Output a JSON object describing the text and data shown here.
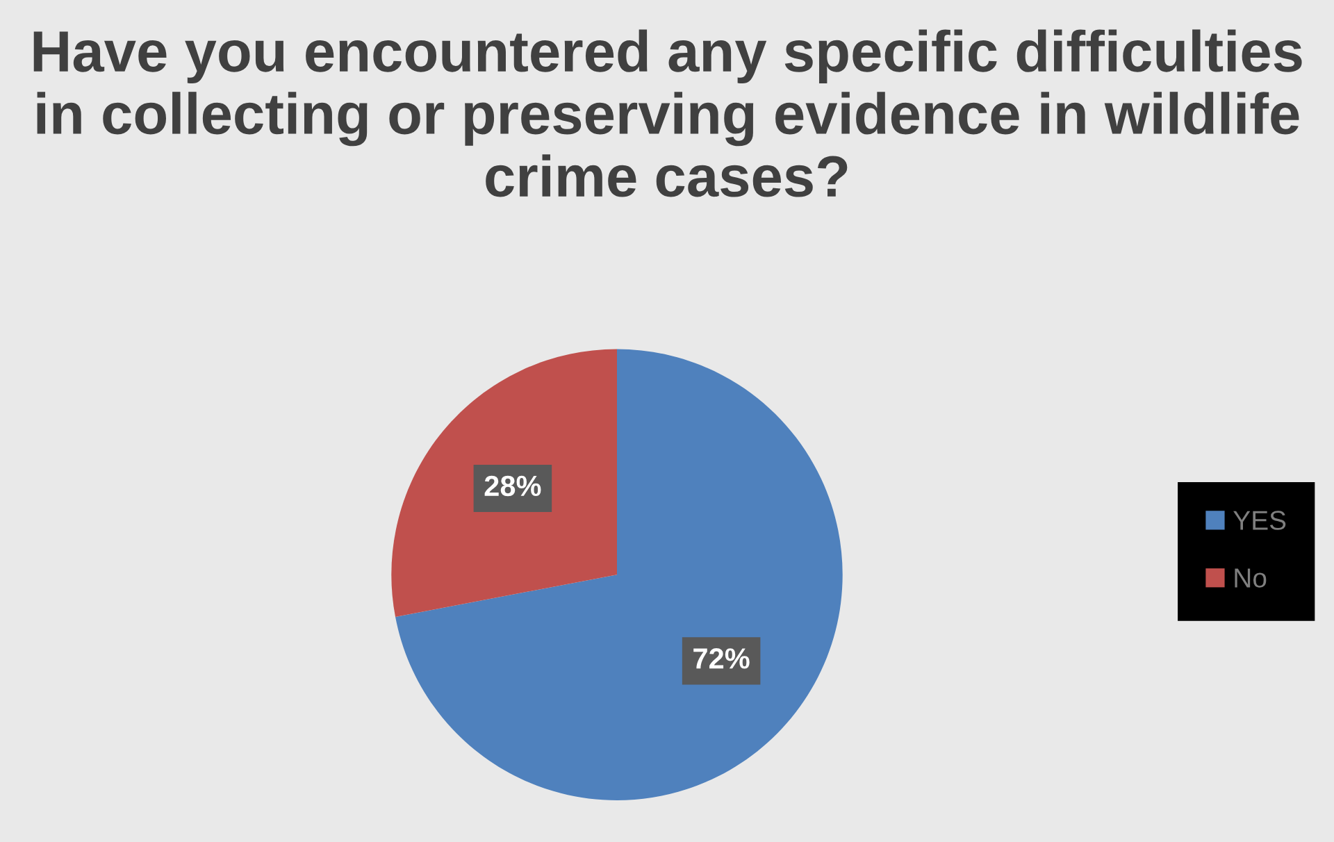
{
  "chart_data": {
    "type": "pie",
    "title": "Have you encountered any specific difficulties in collecting or preserving evidence in wildlife crime cases?",
    "categories": [
      "YES",
      "No"
    ],
    "values": [
      72,
      28
    ],
    "colors": [
      "#4f81bd",
      "#c0504d"
    ],
    "value_labels": [
      "72%",
      "28%"
    ],
    "legend": "right"
  }
}
